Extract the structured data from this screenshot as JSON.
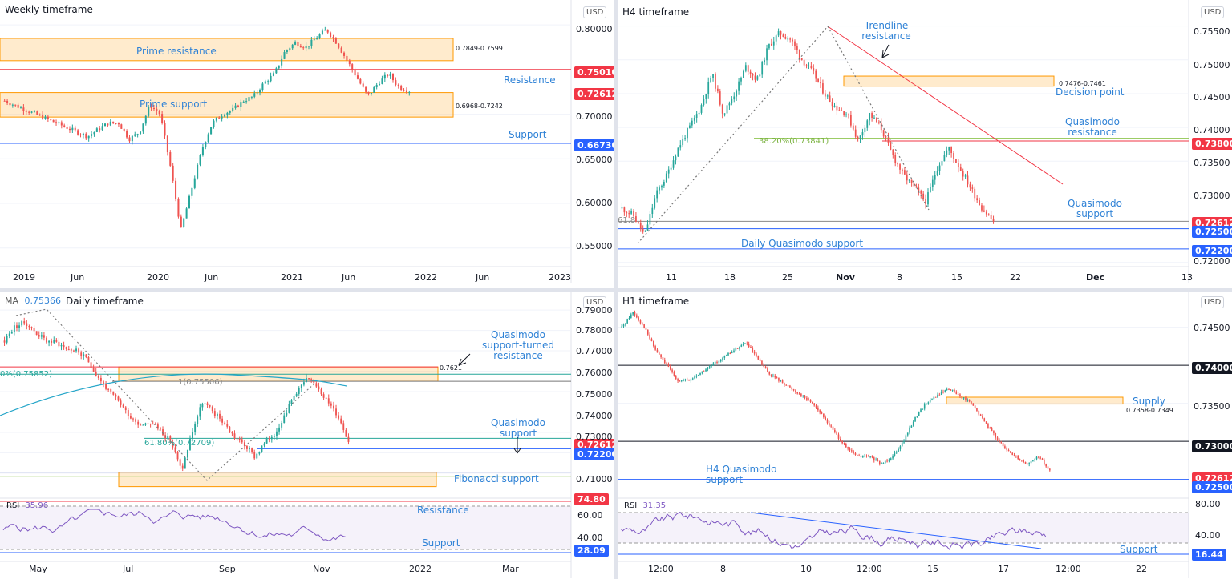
{
  "chart_data": [
    {
      "type": "candlestick",
      "title": "Weekly timeframe",
      "currency": "USD",
      "x_ticks": [
        "2019",
        "Jun",
        "2020",
        "Jun",
        "2021",
        "Jun",
        "2022",
        "Jun",
        "2023"
      ],
      "y_ticks": [
        "0.80000",
        "0.75000",
        "0.70000",
        "0.65000",
        "0.60000",
        "0.55000"
      ],
      "ylim": [
        0.53,
        0.81
      ],
      "zones": [
        {
          "label": "Prime resistance",
          "range": [
            0.7599,
            0.7849
          ],
          "range_label": "0.7849-0.7599"
        },
        {
          "label": "Prime support",
          "range": [
            0.6968,
            0.7242
          ],
          "range_label": "0.6968-0.7242"
        }
      ],
      "levels": [
        {
          "label": "Resistance",
          "value": 0.7501,
          "tag": "0.75010",
          "color": "#f23645"
        },
        {
          "label": "Support",
          "value": 0.6673,
          "tag": "0.66730",
          "color": "#2962ff"
        }
      ],
      "price_tag": "0.72612",
      "path": [
        0.715,
        0.71,
        0.705,
        0.7,
        0.695,
        0.69,
        0.685,
        0.68,
        0.675,
        0.683,
        0.69,
        0.69,
        0.672,
        0.68,
        0.71,
        0.7,
        0.64,
        0.57,
        0.615,
        0.66,
        0.69,
        0.7,
        0.705,
        0.715,
        0.72,
        0.735,
        0.745,
        0.77,
        0.78,
        0.775,
        0.785,
        0.795,
        0.78,
        0.76,
        0.74,
        0.72,
        0.735,
        0.745,
        0.73,
        0.726
      ]
    },
    {
      "type": "candlestick",
      "title": "H4 timeframe",
      "currency": "USD",
      "x_ticks": [
        "11",
        "18",
        "25",
        "Nov",
        "8",
        "15",
        "22",
        "Dec",
        "13"
      ],
      "y_ticks": [
        "0.75500",
        "0.75000",
        "0.74500",
        "0.74000",
        "0.73500",
        "0.73000",
        "0.72500",
        "0.72000"
      ],
      "ylim": [
        0.7195,
        0.7565
      ],
      "zones": [
        {
          "label": "Decision point",
          "range": [
            0.7461,
            0.7476
          ],
          "range_label": "0.7476-0.7461"
        }
      ],
      "levels": [
        {
          "label": "Quasimodo resistance",
          "value": 0.738,
          "tag": "0.73800",
          "color": "#f23645"
        },
        {
          "label": "Quasimodo support",
          "value": 0.725,
          "tag": "0.72500",
          "color": "#2962ff"
        },
        {
          "label": "Daily Quasimodo support",
          "value": 0.722,
          "tag": "0.72200",
          "color": "#2962ff"
        }
      ],
      "fib_label": "38.20%(0.73841)",
      "fib_label_2": "61.8",
      "trendline_label": "Trendline resistance",
      "price_tag": "0.72612",
      "path": [
        0.728,
        0.727,
        0.724,
        0.73,
        0.733,
        0.737,
        0.74,
        0.743,
        0.748,
        0.742,
        0.745,
        0.749,
        0.747,
        0.752,
        0.754,
        0.753,
        0.75,
        0.748,
        0.745,
        0.743,
        0.742,
        0.738,
        0.742,
        0.74,
        0.736,
        0.733,
        0.731,
        0.729,
        0.734,
        0.737,
        0.734,
        0.731,
        0.728,
        0.7261
      ]
    },
    {
      "type": "candlestick",
      "title": "Daily timeframe",
      "currency": "USD",
      "ma_label": "MA",
      "ma_value": "0.75366",
      "x_ticks": [
        "May",
        "Jul",
        "Sep",
        "Nov",
        "2022",
        "Mar"
      ],
      "y_ticks": [
        "0.79000",
        "0.78000",
        "0.77000",
        "0.76000",
        "0.75000",
        "0.74000",
        "0.73000",
        "0.72000",
        "0.71000"
      ],
      "ylim": [
        0.7025,
        0.792
      ],
      "zones": [
        {
          "label": "Quasimodo support-turned resistance",
          "range": [
            0.7551,
            0.7621
          ],
          "range_label": "0.7621"
        },
        {
          "label": "Fibonacci support",
          "range": [
            0.7085,
            0.7105
          ]
        }
      ],
      "levels": [
        {
          "label": "Quasimodo support",
          "value": 0.722,
          "tag": "0.72200",
          "color": "#2962ff"
        }
      ],
      "fib_labels": [
        "0%(0.75852)",
        "1(0.75506)",
        "61.80%(0.72709)"
      ],
      "price_tag": "0.72612",
      "rsi": {
        "label": "RSI",
        "value": "35.96",
        "ticks": [
          "60.00",
          "40.00"
        ],
        "tag_hi": "74.80",
        "tag_lo": "28.09",
        "resistance": "Resistance",
        "support": "Support"
      },
      "path": [
        0.775,
        0.782,
        0.784,
        0.779,
        0.775,
        0.774,
        0.771,
        0.77,
        0.765,
        0.757,
        0.75,
        0.745,
        0.738,
        0.734,
        0.735,
        0.731,
        0.725,
        0.711,
        0.73,
        0.745,
        0.74,
        0.735,
        0.728,
        0.724,
        0.718,
        0.725,
        0.73,
        0.74,
        0.75,
        0.756,
        0.753,
        0.745,
        0.738,
        0.726
      ]
    },
    {
      "type": "candlestick",
      "title": "H1 timeframe",
      "currency": "USD",
      "x_ticks": [
        "12:00",
        "8",
        "10",
        "12:00",
        "15",
        "17",
        "12:00",
        "22"
      ],
      "y_ticks": [
        "0.74500",
        "0.74000",
        "0.73500",
        "0.73000",
        "0.72500"
      ],
      "ylim": [
        0.7238,
        0.7478
      ],
      "zones": [
        {
          "label": "Supply",
          "range": [
            0.7349,
            0.7358
          ],
          "range_label": "0.7358-0.7349"
        }
      ],
      "levels": [
        {
          "label": "",
          "value": 0.74,
          "tag": "0.74000",
          "color": "#131722"
        },
        {
          "label": "",
          "value": 0.73,
          "tag": "0.73000",
          "color": "#131722"
        },
        {
          "label": "H4 Quasimodo support",
          "value": 0.725,
          "tag": "0.72500",
          "color": "#2962ff"
        }
      ],
      "price_tag": "0.72612",
      "rsi": {
        "label": "RSI",
        "value": "31.35",
        "ticks": [
          "80.00",
          "40.00"
        ],
        "tag_lo": "16.44",
        "support": "Support"
      },
      "path": [
        0.745,
        0.747,
        0.745,
        0.742,
        0.74,
        0.738,
        0.738,
        0.739,
        0.74,
        0.741,
        0.742,
        0.743,
        0.741,
        0.739,
        0.738,
        0.737,
        0.736,
        0.735,
        0.733,
        0.731,
        0.729,
        0.728,
        0.728,
        0.727,
        0.728,
        0.73,
        0.733,
        0.735,
        0.736,
        0.737,
        0.736,
        0.735,
        0.733,
        0.731,
        0.729,
        0.728,
        0.727,
        0.728,
        0.7261
      ]
    }
  ]
}
